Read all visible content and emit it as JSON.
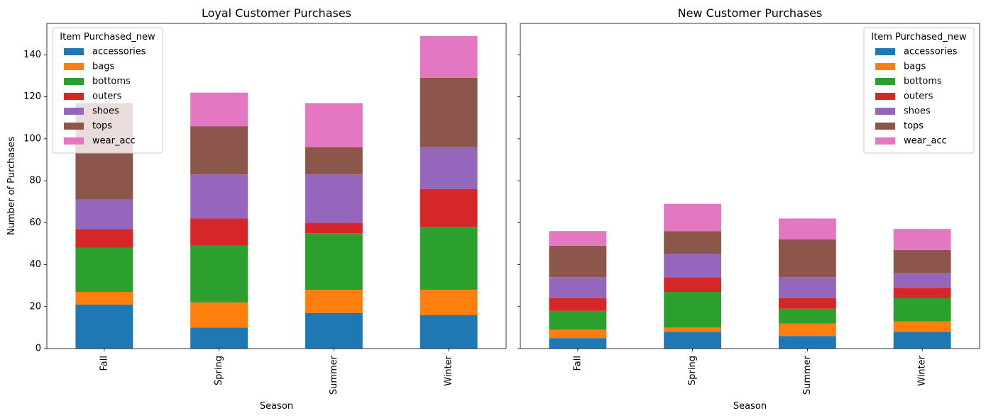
{
  "chart_data": [
    {
      "type": "bar",
      "stacked": true,
      "title": "Loyal Customer Purchases",
      "xlabel": "Season",
      "ylabel": "Number of Purchases",
      "categories": [
        "Fall",
        "Spring",
        "Summer",
        "Winter"
      ],
      "ylim": [
        0,
        155
      ],
      "yticks": [
        0,
        20,
        40,
        60,
        80,
        100,
        120,
        140
      ],
      "legend": {
        "title": "Item Purchased_new",
        "placement": "top-left"
      },
      "series": [
        {
          "name": "accessories",
          "color": "#1f77b4",
          "values": [
            21,
            10,
            17,
            16
          ]
        },
        {
          "name": "bags",
          "color": "#ff7f0e",
          "values": [
            6,
            12,
            11,
            12
          ]
        },
        {
          "name": "bottoms",
          "color": "#2ca02c",
          "values": [
            21,
            27,
            27,
            30
          ]
        },
        {
          "name": "outers",
          "color": "#d62728",
          "values": [
            9,
            13,
            5,
            18
          ]
        },
        {
          "name": "shoes",
          "color": "#9467bd",
          "values": [
            14,
            21,
            23,
            20
          ]
        },
        {
          "name": "tops",
          "color": "#8c564b",
          "values": [
            46,
            23,
            13,
            33
          ]
        },
        {
          "name": "wear_acc",
          "color": "#e377c2",
          "values": [
            0,
            16,
            21,
            20
          ]
        }
      ]
    },
    {
      "type": "bar",
      "stacked": true,
      "title": "New Customer Purchases",
      "xlabel": "Season",
      "ylabel": "",
      "categories": [
        "Fall",
        "Spring",
        "Summer",
        "Winter"
      ],
      "ylim": [
        0,
        155
      ],
      "yticks": [
        0,
        20,
        40,
        60,
        80,
        100,
        120,
        140
      ],
      "legend": {
        "title": "Item Purchased_new",
        "placement": "top-right"
      },
      "series": [
        {
          "name": "accessories",
          "color": "#1f77b4",
          "values": [
            5,
            8,
            6,
            8
          ]
        },
        {
          "name": "bags",
          "color": "#ff7f0e",
          "values": [
            4,
            2,
            6,
            5
          ]
        },
        {
          "name": "bottoms",
          "color": "#2ca02c",
          "values": [
            9,
            17,
            7,
            11
          ]
        },
        {
          "name": "outers",
          "color": "#d62728",
          "values": [
            6,
            7,
            5,
            5
          ]
        },
        {
          "name": "shoes",
          "color": "#9467bd",
          "values": [
            10,
            11,
            10,
            7
          ]
        },
        {
          "name": "tops",
          "color": "#8c564b",
          "values": [
            15,
            11,
            18,
            11
          ]
        },
        {
          "name": "wear_acc",
          "color": "#e377c2",
          "values": [
            7,
            13,
            10,
            10
          ]
        }
      ]
    }
  ]
}
